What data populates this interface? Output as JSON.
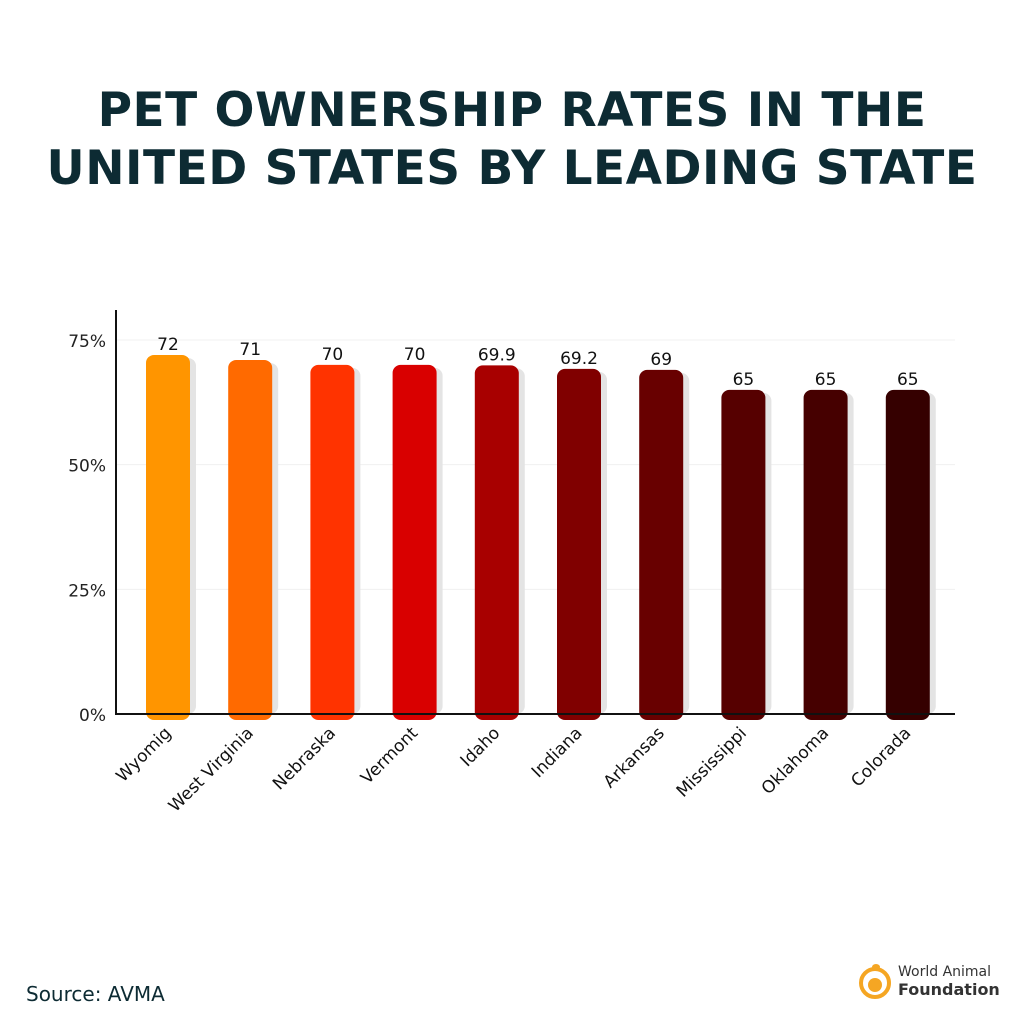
{
  "title": "PET OWNERSHIP RATES IN THE UNITED STATES BY LEADING STATE",
  "source": "Source: AVMA",
  "logo": {
    "line1": "World Animal",
    "line2": "Foundation",
    "color": "#F5A623"
  },
  "chart_data": {
    "type": "bar",
    "title": "",
    "xlabel": "",
    "ylabel": "",
    "categories": [
      "Wyomig",
      "West Virginia",
      "Nebraska",
      "Vermont",
      "Idaho",
      "Indiana",
      "Arkansas",
      "Mississippi",
      "Oklahoma",
      "Colorada"
    ],
    "values": [
      72,
      71,
      70,
      70,
      69.9,
      69.2,
      69,
      65,
      65,
      65
    ],
    "value_labels": [
      "72",
      "71",
      "70",
      "70",
      "69.9",
      "69.2",
      "69",
      "65",
      "65",
      "65"
    ],
    "colors": [
      "#FF9500",
      "#FF6A00",
      "#FF3300",
      "#D90000",
      "#A80000",
      "#800000",
      "#680000",
      "#560000",
      "#460000",
      "#350000"
    ],
    "ylim": [
      0,
      75
    ],
    "yticks": [
      0,
      25,
      50,
      75
    ],
    "ytick_labels": [
      "0%",
      "25%",
      "50%",
      "75%"
    ],
    "grid": true,
    "legend": "none"
  }
}
